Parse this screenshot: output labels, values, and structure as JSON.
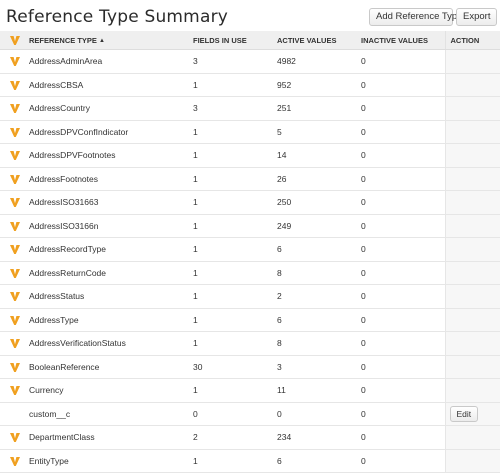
{
  "header": {
    "title": "Reference Type Summary",
    "add_button_label": "Add Reference Type",
    "export_button_label": "Export"
  },
  "table": {
    "columns": {
      "reference_type": "REFERENCE TYPE",
      "fields_in_use": "FIELDS IN USE",
      "active_values": "ACTIVE VALUES",
      "inactive_values": "INACTIVE VALUES",
      "action": "ACTION"
    },
    "sort_indicator": "▲",
    "icon_name": "veeva-v-icon",
    "icon_color": "#f0a020",
    "edit_label": "Edit",
    "rows": [
      {
        "name": "AddressAdminArea",
        "fields": "3",
        "active": "4982",
        "inactive": "0",
        "icon": true,
        "edit": false
      },
      {
        "name": "AddressCBSA",
        "fields": "1",
        "active": "952",
        "inactive": "0",
        "icon": true,
        "edit": false
      },
      {
        "name": "AddressCountry",
        "fields": "3",
        "active": "251",
        "inactive": "0",
        "icon": true,
        "edit": false
      },
      {
        "name": "AddressDPVConfIndicator",
        "fields": "1",
        "active": "5",
        "inactive": "0",
        "icon": true,
        "edit": false
      },
      {
        "name": "AddressDPVFootnotes",
        "fields": "1",
        "active": "14",
        "inactive": "0",
        "icon": true,
        "edit": false
      },
      {
        "name": "AddressFootnotes",
        "fields": "1",
        "active": "26",
        "inactive": "0",
        "icon": true,
        "edit": false
      },
      {
        "name": "AddressISO31663",
        "fields": "1",
        "active": "250",
        "inactive": "0",
        "icon": true,
        "edit": false
      },
      {
        "name": "AddressISO3166n",
        "fields": "1",
        "active": "249",
        "inactive": "0",
        "icon": true,
        "edit": false
      },
      {
        "name": "AddressRecordType",
        "fields": "1",
        "active": "6",
        "inactive": "0",
        "icon": true,
        "edit": false
      },
      {
        "name": "AddressReturnCode",
        "fields": "1",
        "active": "8",
        "inactive": "0",
        "icon": true,
        "edit": false
      },
      {
        "name": "AddressStatus",
        "fields": "1",
        "active": "2",
        "inactive": "0",
        "icon": true,
        "edit": false
      },
      {
        "name": "AddressType",
        "fields": "1",
        "active": "6",
        "inactive": "0",
        "icon": true,
        "edit": false
      },
      {
        "name": "AddressVerificationStatus",
        "fields": "1",
        "active": "8",
        "inactive": "0",
        "icon": true,
        "edit": false
      },
      {
        "name": "BooleanReference",
        "fields": "30",
        "active": "3",
        "inactive": "0",
        "icon": true,
        "edit": false
      },
      {
        "name": "Currency",
        "fields": "1",
        "active": "11",
        "inactive": "0",
        "icon": true,
        "edit": false
      },
      {
        "name": "custom__c",
        "fields": "0",
        "active": "0",
        "inactive": "0",
        "icon": false,
        "edit": true
      },
      {
        "name": "DepartmentClass",
        "fields": "2",
        "active": "234",
        "inactive": "0",
        "icon": true,
        "edit": false
      },
      {
        "name": "EntityType",
        "fields": "1",
        "active": "6",
        "inactive": "0",
        "icon": true,
        "edit": false
      }
    ]
  }
}
